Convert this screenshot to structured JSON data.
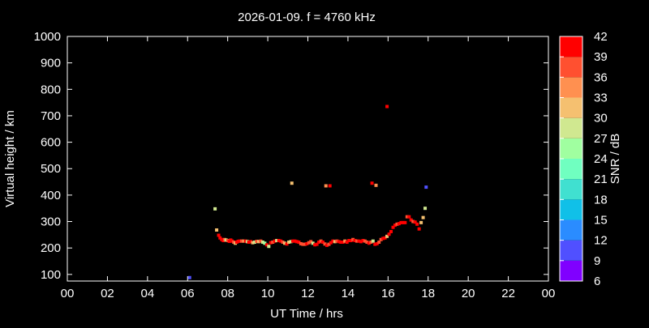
{
  "chart_data": {
    "type": "scatter",
    "title": "2026-01-09. f = 4760 kHz",
    "xlabel": "UT Time / hrs",
    "ylabel": "Virtual height / km",
    "xlim": [
      0,
      24
    ],
    "ylim": [
      75,
      1000
    ],
    "xticks": [
      "00",
      "02",
      "04",
      "06",
      "08",
      "10",
      "12",
      "14",
      "16",
      "18",
      "20",
      "22",
      "00"
    ],
    "yticks": [
      100,
      200,
      300,
      400,
      500,
      600,
      700,
      800,
      900,
      1000
    ],
    "grid": false,
    "colorbar": {
      "label": "SNR / dB",
      "range": [
        6,
        42
      ],
      "ticks": [
        6,
        9,
        12,
        15,
        18,
        21,
        24,
        27,
        30,
        33,
        36,
        39,
        42
      ],
      "colors": [
        "#8000ff",
        "#5050ff",
        "#2a8cff",
        "#10c0e8",
        "#40e0d0",
        "#70ffc0",
        "#a0ffa0",
        "#d0e890",
        "#f5c070",
        "#ff9050",
        "#ff5030",
        "#ff0000"
      ]
    },
    "points_format": [
      "time_hrs",
      "height_km",
      "snr_db"
    ],
    "points": [
      [
        6.1,
        88,
        10
      ],
      [
        7.37,
        348,
        28
      ],
      [
        7.45,
        268,
        32
      ],
      [
        7.55,
        248,
        40
      ],
      [
        7.62,
        238,
        40
      ],
      [
        7.7,
        232,
        40
      ],
      [
        7.78,
        228,
        40
      ],
      [
        7.85,
        232,
        37
      ],
      [
        7.92,
        230,
        28
      ],
      [
        8.0,
        228,
        37
      ],
      [
        8.08,
        225,
        40
      ],
      [
        8.15,
        230,
        40
      ],
      [
        8.22,
        226,
        40
      ],
      [
        8.3,
        222,
        37
      ],
      [
        8.38,
        218,
        32
      ],
      [
        8.45,
        222,
        40
      ],
      [
        8.52,
        225,
        40
      ],
      [
        8.6,
        226,
        40
      ],
      [
        8.7,
        226,
        37
      ],
      [
        8.8,
        226,
        35
      ],
      [
        8.9,
        226,
        40
      ],
      [
        8.98,
        224,
        28
      ],
      [
        9.05,
        222,
        40
      ],
      [
        9.15,
        224,
        40
      ],
      [
        9.25,
        220,
        32
      ],
      [
        9.35,
        222,
        28
      ],
      [
        9.45,
        225,
        37
      ],
      [
        9.55,
        224,
        32
      ],
      [
        9.65,
        226,
        37
      ],
      [
        9.75,
        222,
        28
      ],
      [
        9.85,
        218,
        26
      ],
      [
        9.95,
        212,
        40
      ],
      [
        10.05,
        206,
        27
      ],
      [
        10.15,
        220,
        40
      ],
      [
        10.25,
        222,
        37
      ],
      [
        10.35,
        226,
        40
      ],
      [
        10.45,
        228,
        28
      ],
      [
        10.55,
        228,
        40
      ],
      [
        10.65,
        226,
        40
      ],
      [
        10.75,
        222,
        37
      ],
      [
        10.85,
        218,
        32
      ],
      [
        10.95,
        215,
        40
      ],
      [
        11.05,
        222,
        32
      ],
      [
        11.15,
        224,
        28
      ],
      [
        11.25,
        226,
        40
      ],
      [
        11.35,
        226,
        40
      ],
      [
        11.45,
        224,
        40
      ],
      [
        11.55,
        222,
        40
      ],
      [
        11.65,
        216,
        37
      ],
      [
        11.75,
        214,
        36
      ],
      [
        11.85,
        214,
        37
      ],
      [
        11.95,
        216,
        40
      ],
      [
        12.05,
        220,
        37
      ],
      [
        12.15,
        224,
        37
      ],
      [
        12.25,
        218,
        27
      ],
      [
        12.35,
        212,
        40
      ],
      [
        12.45,
        214,
        40
      ],
      [
        12.55,
        222,
        40
      ],
      [
        12.65,
        226,
        37
      ],
      [
        12.75,
        222,
        40
      ],
      [
        12.85,
        215,
        37
      ],
      [
        12.95,
        210,
        40
      ],
      [
        13.05,
        214,
        37
      ],
      [
        13.15,
        220,
        40
      ],
      [
        13.25,
        226,
        40
      ],
      [
        13.35,
        224,
        32
      ],
      [
        13.45,
        226,
        37
      ],
      [
        13.55,
        224,
        40
      ],
      [
        13.65,
        222,
        40
      ],
      [
        13.75,
        222,
        40
      ],
      [
        13.85,
        226,
        33
      ],
      [
        13.95,
        222,
        40
      ],
      [
        14.05,
        228,
        40
      ],
      [
        14.15,
        228,
        40
      ],
      [
        14.25,
        232,
        37
      ],
      [
        14.35,
        228,
        40
      ],
      [
        14.45,
        226,
        37
      ],
      [
        14.55,
        226,
        40
      ],
      [
        14.65,
        224,
        40
      ],
      [
        14.75,
        228,
        40
      ],
      [
        14.85,
        226,
        37
      ],
      [
        14.95,
        222,
        37
      ],
      [
        15.05,
        218,
        40
      ],
      [
        15.15,
        222,
        37
      ],
      [
        15.25,
        226,
        27
      ],
      [
        15.35,
        214,
        40
      ],
      [
        15.45,
        216,
        40
      ],
      [
        15.55,
        222,
        37
      ],
      [
        15.65,
        232,
        37
      ],
      [
        15.75,
        236,
        40
      ],
      [
        15.85,
        238,
        40
      ],
      [
        15.95,
        244,
        30
      ],
      [
        16.05,
        252,
        40
      ],
      [
        16.15,
        262,
        40
      ],
      [
        16.25,
        278,
        40
      ],
      [
        16.35,
        286,
        40
      ],
      [
        16.45,
        290,
        36
      ],
      [
        16.55,
        292,
        40
      ],
      [
        16.65,
        296,
        40
      ],
      [
        16.75,
        296,
        40
      ],
      [
        16.85,
        296,
        40
      ],
      [
        16.95,
        318,
        36
      ],
      [
        17.05,
        318,
        40
      ],
      [
        17.15,
        306,
        40
      ],
      [
        17.25,
        300,
        36
      ],
      [
        17.35,
        298,
        40
      ],
      [
        17.45,
        290,
        40
      ],
      [
        17.55,
        272,
        40
      ],
      [
        17.65,
        296,
        32
      ],
      [
        17.75,
        315,
        32
      ],
      [
        17.85,
        350,
        27
      ],
      [
        17.9,
        430,
        10
      ],
      [
        11.2,
        445,
        32
      ],
      [
        12.9,
        435,
        33
      ],
      [
        13.1,
        435,
        40
      ],
      [
        15.2,
        445,
        40
      ],
      [
        15.4,
        437,
        35
      ],
      [
        15.95,
        735,
        40
      ]
    ]
  }
}
